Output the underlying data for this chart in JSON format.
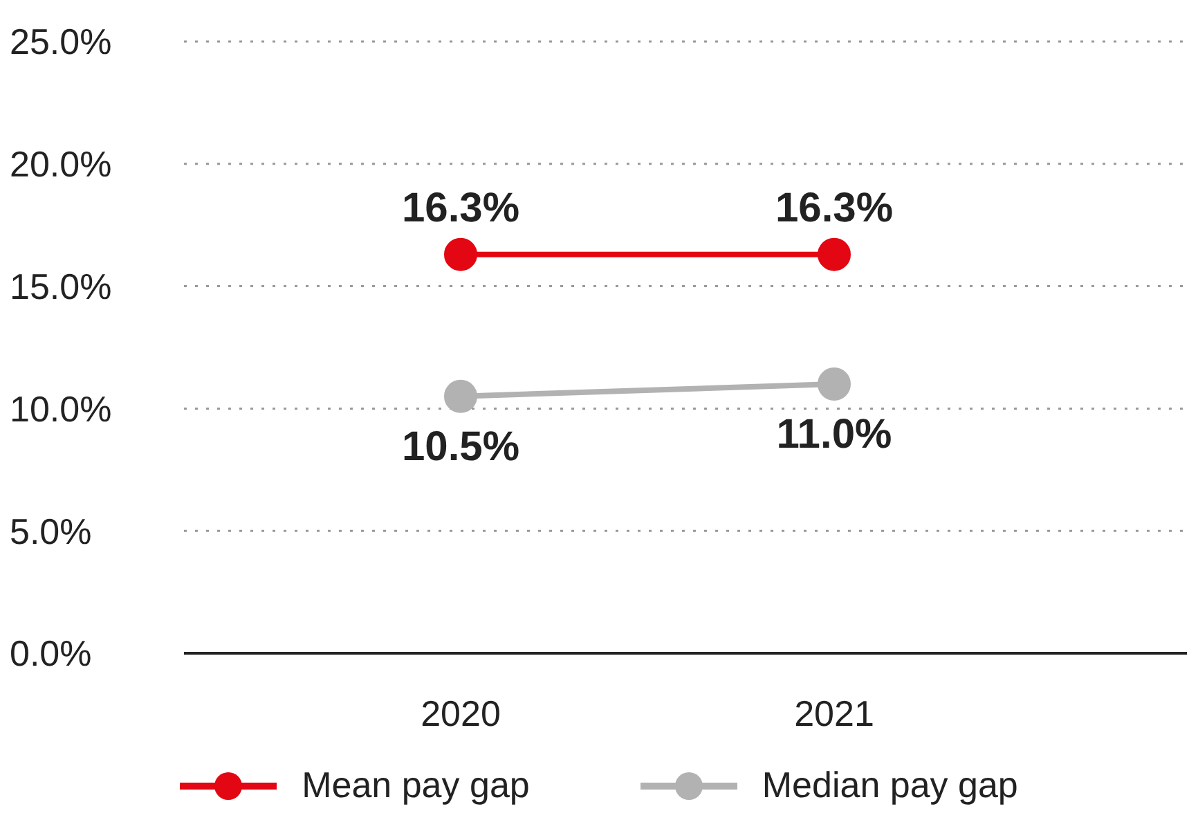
{
  "chart_data": {
    "type": "line",
    "categories": [
      "2020",
      "2021"
    ],
    "series": [
      {
        "name": "Mean pay gap",
        "color": "#e30613",
        "values": [
          16.3,
          16.3
        ],
        "value_labels": [
          "16.3%",
          "16.3%"
        ]
      },
      {
        "name": "Median pay gap",
        "color": "#b2b2b2",
        "values": [
          10.5,
          11.0
        ],
        "value_labels": [
          "10.5%",
          "11.0%"
        ]
      }
    ],
    "ylim": [
      0,
      25
    ],
    "yticks": [
      {
        "value": 0,
        "label": "0.0%"
      },
      {
        "value": 5,
        "label": "5.0%"
      },
      {
        "value": 10,
        "label": "10.0%"
      },
      {
        "value": 15,
        "label": "15.0%"
      },
      {
        "value": 20,
        "label": "20.0%"
      },
      {
        "value": 25,
        "label": "25.0%"
      }
    ],
    "grid": "y",
    "legend": "bottom",
    "marker": "circle",
    "line_style": "solid"
  }
}
